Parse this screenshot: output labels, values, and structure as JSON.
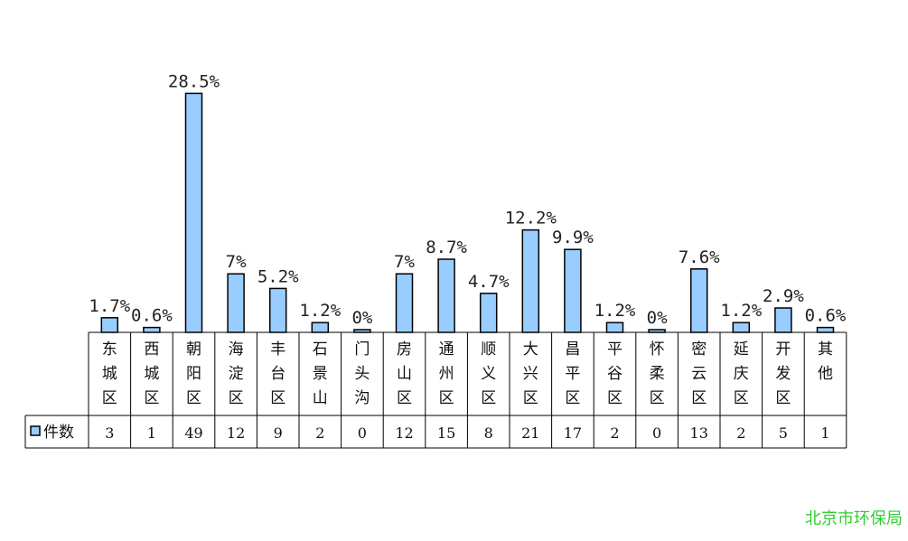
{
  "chart_data": {
    "type": "bar",
    "categories": [
      "东城区",
      "西城区",
      "朝阳区",
      "海淀区",
      "丰台区",
      "石景山",
      "门头沟",
      "房山区",
      "通州区",
      "顺义区",
      "大兴区",
      "昌平区",
      "平谷区",
      "怀柔区",
      "密云区",
      "延庆区",
      "开发区",
      "其他"
    ],
    "series": [
      {
        "name": "件数",
        "values": [
          3,
          1,
          49,
          12,
          9,
          2,
          0,
          12,
          15,
          8,
          21,
          17,
          2,
          0,
          13,
          2,
          5,
          1
        ]
      }
    ],
    "percent_labels": [
      "1.7%",
      "0.6%",
      "28.5%",
      "7%",
      "5.2%",
      "1.2%",
      "0%",
      "7%",
      "8.7%",
      "4.7%",
      "12.2%",
      "9.9%",
      "1.2%",
      "0%",
      "7.6%",
      "1.2%",
      "2.9%",
      "0.6%"
    ],
    "legend_placement": "bottom-left data table",
    "grid": false,
    "bar_color": "#99ccff",
    "bar_stroke": "#000000"
  },
  "watermark": {
    "text": "北京市环保局",
    "color": "#33cc33"
  }
}
